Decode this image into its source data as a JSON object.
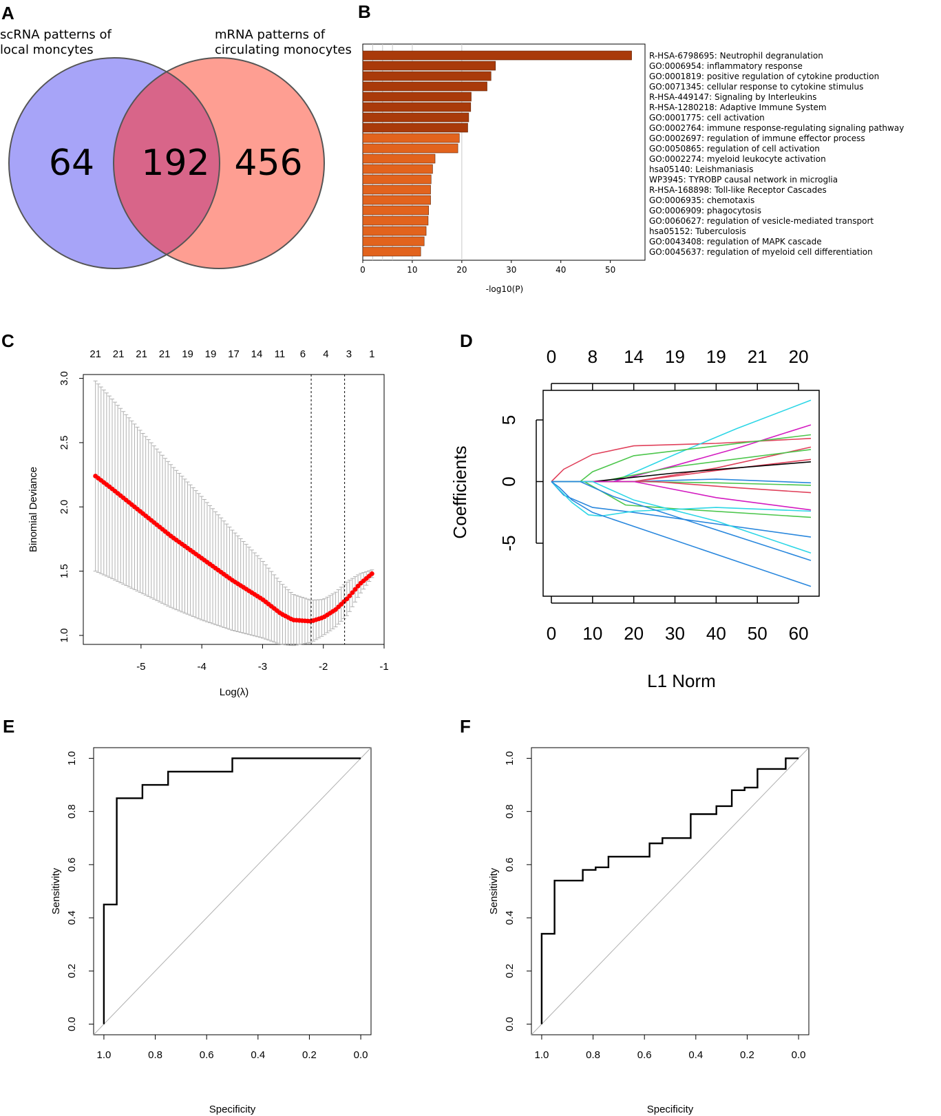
{
  "panels": {
    "a": "A",
    "b": "B",
    "c": "C",
    "d": "D",
    "e": "E",
    "f": "F"
  },
  "chart_data": [
    {
      "type": "venn",
      "sets": [
        {
          "label_lines": [
            "scRNA patterns of",
            "local moncytes"
          ],
          "only": "64",
          "color": "#a7a4f8"
        },
        {
          "label_lines": [
            "mRNA patterns of",
            "circulating monocytes"
          ],
          "only": "456",
          "color": "#fe9e92"
        }
      ],
      "intersection": "192",
      "intersection_color": "#d86589"
    },
    {
      "type": "bar",
      "orientation": "horizontal",
      "xlabel": "-log10(P)",
      "xlim": [
        0,
        57
      ],
      "xticks": [
        0,
        10,
        20,
        30,
        40,
        50
      ],
      "categories": [
        "R-HSA-6798695: Neutrophil degranulation",
        "GO:0006954: inflammatory response",
        "GO:0001819: positive regulation of cytokine production",
        "GO:0071345: cellular response to cytokine stimulus",
        "R-HSA-449147: Signaling by Interleukins",
        "R-HSA-1280218: Adaptive Immune System",
        "GO:0001775: cell activation",
        "GO:0002764: immune response-regulating signaling pathway",
        "GO:0002697: regulation of immune effector process",
        "GO:0050865: regulation of cell activation",
        "GO:0002274: myeloid leukocyte activation",
        "hsa05140: Leishmaniasis",
        "WP3945: TYROBP causal network in microglia",
        "R-HSA-168898: Toll-like Receptor Cascades",
        "GO:0006935: chemotaxis",
        "GO:0006909: phagocytosis",
        "GO:0060627: regulation of vesicle-mediated transport",
        "hsa05152: Tuberculosis",
        "GO:0043408: regulation of MAPK cascade",
        "GO:0045637: regulation of myeloid cell differentiation"
      ],
      "values": [
        54.3,
        26.8,
        25.9,
        25.1,
        21.9,
        21.8,
        21.4,
        21.2,
        19.5,
        19.2,
        14.6,
        14.1,
        13.8,
        13.7,
        13.7,
        13.3,
        13.2,
        12.8,
        12.4,
        11.7
      ],
      "colors": [
        "#a93a0a",
        "#a93a0a",
        "#a93a0a",
        "#a93a0a",
        "#a93a0a",
        "#a93a0a",
        "#a93a0a",
        "#a93a0a",
        "#e2631d",
        "#e2631d",
        "#e2631d",
        "#e2631d",
        "#e2631d",
        "#e2631d",
        "#e2631d",
        "#e2631d",
        "#e2631d",
        "#e2631d",
        "#e2631d",
        "#e2631d"
      ]
    },
    {
      "type": "scatter",
      "xlabel": "Log(λ)",
      "ylabel": "Binomial Deviance",
      "xlim": [
        -5.95,
        -1
      ],
      "ylim": [
        0.93,
        3.03
      ],
      "xticks": [
        -5,
        -4,
        -3,
        -2,
        -1
      ],
      "yticks": [
        1.0,
        1.5,
        2.0,
        2.5,
        3.0
      ],
      "top_axis": [
        "21",
        "21",
        "21",
        "21",
        "19",
        "19",
        "17",
        "14",
        "11",
        "6",
        "4",
        "3",
        "1"
      ],
      "lambda_min": -2.2,
      "lambda_1se": -1.65,
      "curve_points": [
        [
          -5.75,
          2.24
        ],
        [
          -5.5,
          2.15
        ],
        [
          -5,
          1.96
        ],
        [
          -4.5,
          1.77
        ],
        [
          -4,
          1.6
        ],
        [
          -3.5,
          1.43
        ],
        [
          -3,
          1.28
        ],
        [
          -2.7,
          1.17
        ],
        [
          -2.5,
          1.12
        ],
        [
          -2.2,
          1.11
        ],
        [
          -2.0,
          1.14
        ],
        [
          -1.8,
          1.2
        ],
        [
          -1.6,
          1.29
        ],
        [
          -1.4,
          1.4
        ],
        [
          -1.2,
          1.48
        ]
      ],
      "band_half_width": [
        [
          -5.75,
          0.74
        ],
        [
          -4,
          0.48
        ],
        [
          -3,
          0.3
        ],
        [
          -2.5,
          0.2
        ],
        [
          -2,
          0.14
        ],
        [
          -1.6,
          0.13
        ],
        [
          -1.2,
          0.03
        ]
      ],
      "point_color": "#ff0000"
    },
    {
      "type": "line",
      "xlabel": "L1 Norm",
      "ylabel": "Coefficients",
      "xlim": [
        -2,
        65
      ],
      "ylim": [
        -9.3,
        7.4
      ],
      "xticks": [
        0,
        10,
        20,
        30,
        40,
        50,
        60
      ],
      "yticks": [
        -5,
        0,
        5
      ],
      "top_axis": [
        "0",
        "8",
        "14",
        "19",
        "19",
        "21",
        "20"
      ],
      "series": [
        {
          "name": "red-a",
          "color": "#e0405a",
          "x": [
            0,
            3,
            10,
            20,
            40,
            63
          ],
          "y": [
            0,
            1,
            2.2,
            2.9,
            3.1,
            3.5
          ]
        },
        {
          "name": "cyan-a",
          "color": "#2cd6e6",
          "x": [
            0,
            15,
            30,
            45,
            63
          ],
          "y": [
            0,
            0,
            2.2,
            4.3,
            6.6
          ]
        },
        {
          "name": "magenta-a",
          "color": "#d31bc0",
          "x": [
            0,
            15,
            30,
            45,
            63
          ],
          "y": [
            0,
            0,
            1.3,
            2.7,
            4.6
          ]
        },
        {
          "name": "green-a",
          "color": "#4cc64c",
          "x": [
            0,
            7,
            10,
            20,
            63
          ],
          "y": [
            0,
            0,
            0.8,
            2.1,
            3.8
          ]
        },
        {
          "name": "red-b",
          "color": "#e0405a",
          "x": [
            0,
            20,
            40,
            63
          ],
          "y": [
            0,
            0,
            1.1,
            2.8
          ]
        },
        {
          "name": "green-b",
          "color": "#4cc64c",
          "x": [
            0,
            12,
            30,
            63
          ],
          "y": [
            0,
            0,
            1.2,
            2.6
          ]
        },
        {
          "name": "red-c",
          "color": "#e0405a",
          "x": [
            0,
            20,
            40,
            63
          ],
          "y": [
            0,
            0,
            0.9,
            1.8
          ]
        },
        {
          "name": "black",
          "color": "#000000",
          "x": [
            0,
            10,
            30,
            63
          ],
          "y": [
            0,
            0,
            0.7,
            1.6
          ]
        },
        {
          "name": "blue-a",
          "color": "#2987dd",
          "x": [
            0,
            20,
            40,
            63
          ],
          "y": [
            0,
            0,
            0.2,
            -0.1
          ]
        },
        {
          "name": "green-c",
          "color": "#4cc64c",
          "x": [
            0,
            20,
            40,
            63
          ],
          "y": [
            0,
            0,
            -0.1,
            -0.3
          ]
        },
        {
          "name": "red-d",
          "color": "#e0405a",
          "x": [
            0,
            25,
            45,
            63
          ],
          "y": [
            0,
            0,
            -0.5,
            -0.9
          ]
        },
        {
          "name": "magenta-b",
          "color": "#d31bc0",
          "x": [
            0,
            20,
            40,
            63
          ],
          "y": [
            0,
            0,
            -1.3,
            -2.3
          ]
        },
        {
          "name": "green-d",
          "color": "#4cc64c",
          "x": [
            0,
            8,
            18,
            30,
            63
          ],
          "y": [
            0,
            0,
            -1.9,
            -2.2,
            -2.9
          ]
        },
        {
          "name": "blue-b",
          "color": "#2987dd",
          "x": [
            0,
            3,
            10,
            20,
            63
          ],
          "y": [
            0,
            -1.1,
            -2.1,
            -2.5,
            -4.5
          ]
        },
        {
          "name": "cyan-b",
          "color": "#2cd6e6",
          "x": [
            0,
            5,
            9,
            12,
            20,
            40,
            63
          ],
          "y": [
            0,
            -1.7,
            -2.7,
            -2.8,
            -2.4,
            -2.1,
            -2.4
          ]
        },
        {
          "name": "cyan-c",
          "color": "#2cd6e6",
          "x": [
            0,
            10,
            20,
            40,
            63
          ],
          "y": [
            0,
            0,
            -1.5,
            -3.2,
            -5.8
          ]
        },
        {
          "name": "blue-c",
          "color": "#2987dd",
          "x": [
            0,
            7,
            15,
            63
          ],
          "y": [
            0,
            0,
            -1.2,
            -6.4
          ]
        },
        {
          "name": "blue-d",
          "color": "#2987dd",
          "x": [
            0,
            2,
            5,
            10,
            63
          ],
          "y": [
            0,
            -0.5,
            -1.5,
            -2.5,
            -8.5
          ]
        }
      ]
    },
    {
      "type": "line",
      "xlabel": "Specificity",
      "ylabel": "Sensitivity",
      "xlim": [
        1.04,
        -0.04
      ],
      "ylim": [
        -0.04,
        1.04
      ],
      "xticks": [
        1.0,
        0.8,
        0.6,
        0.4,
        0.2,
        0.0
      ],
      "xtick_labels": [
        "1.0",
        "0.8",
        "0.6",
        "0.4",
        "0.2",
        "0.0"
      ],
      "yticks": [
        0.0,
        0.2,
        0.4,
        0.6,
        0.8,
        1.0
      ],
      "ytick_labels": [
        "0.0",
        "0.2",
        "0.4",
        "0.6",
        "0.8",
        "1.0"
      ],
      "roc": {
        "x": [
          1.0,
          1.0,
          0.95,
          0.95,
          0.85,
          0.85,
          0.75,
          0.75,
          0.5,
          0.5,
          0.0
        ],
        "y": [
          0.0,
          0.45,
          0.45,
          0.85,
          0.85,
          0.9,
          0.9,
          0.95,
          0.95,
          1.0,
          1.0
        ]
      }
    },
    {
      "type": "line",
      "xlabel": "Specificity",
      "ylabel": "Sensitivity",
      "xlim": [
        1.04,
        -0.04
      ],
      "ylim": [
        -0.04,
        1.04
      ],
      "xticks": [
        1.0,
        0.8,
        0.6,
        0.4,
        0.2,
        0.0
      ],
      "xtick_labels": [
        "1.0",
        "0.8",
        "0.6",
        "0.4",
        "0.2",
        "0.0"
      ],
      "yticks": [
        0.0,
        0.2,
        0.4,
        0.6,
        0.8,
        1.0
      ],
      "ytick_labels": [
        "0.0",
        "0.2",
        "0.4",
        "0.6",
        "0.8",
        "1.0"
      ],
      "roc": {
        "x": [
          1.0,
          1.0,
          0.95,
          0.95,
          0.84,
          0.84,
          0.79,
          0.79,
          0.74,
          0.74,
          0.58,
          0.58,
          0.53,
          0.53,
          0.42,
          0.42,
          0.32,
          0.32,
          0.26,
          0.26,
          0.21,
          0.21,
          0.16,
          0.16,
          0.05,
          0.05,
          0.0
        ],
        "y": [
          0.0,
          0.34,
          0.34,
          0.54,
          0.54,
          0.58,
          0.58,
          0.59,
          0.59,
          0.63,
          0.63,
          0.68,
          0.68,
          0.7,
          0.7,
          0.79,
          0.79,
          0.82,
          0.82,
          0.88,
          0.88,
          0.89,
          0.89,
          0.96,
          0.96,
          1.0,
          1.0
        ]
      }
    }
  ]
}
